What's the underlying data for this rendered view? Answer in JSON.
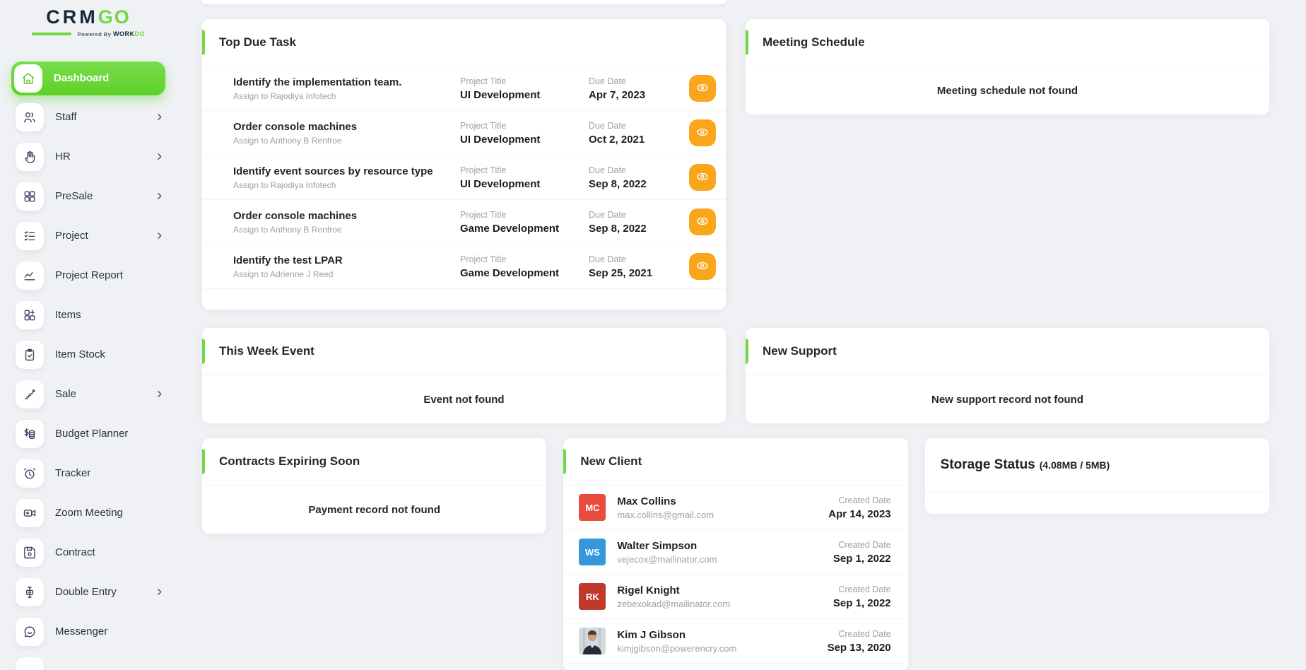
{
  "brand": {
    "name_primary": "CRM",
    "name_accent": "GO",
    "powered_by": "Powered By",
    "powered_brand_primary": "WORK",
    "powered_brand_accent": "DO"
  },
  "colors": {
    "accent_green": "#6fd943",
    "warning_orange": "#f9a61c",
    "avatar_red": "#e74c3c",
    "avatar_blue": "#3498db",
    "avatar_dark_red": "#c0392b"
  },
  "sidebar": {
    "items": [
      {
        "label": "Dashboard",
        "icon": "home-icon",
        "active": true,
        "has_submenu": false
      },
      {
        "label": "Staff",
        "icon": "users-icon",
        "active": false,
        "has_submenu": true
      },
      {
        "label": "HR",
        "icon": "hand-icon",
        "active": false,
        "has_submenu": true
      },
      {
        "label": "PreSale",
        "icon": "grid-icon",
        "active": false,
        "has_submenu": true
      },
      {
        "label": "Project",
        "icon": "list-checks-icon",
        "active": false,
        "has_submenu": true
      },
      {
        "label": "Project Report",
        "icon": "chart-line-icon",
        "active": false,
        "has_submenu": false
      },
      {
        "label": "Items",
        "icon": "grid-plus-icon",
        "active": false,
        "has_submenu": false
      },
      {
        "label": "Item Stock",
        "icon": "clipboard-check-icon",
        "active": false,
        "has_submenu": false
      },
      {
        "label": "Sale",
        "icon": "stairs-icon",
        "active": false,
        "has_submenu": true
      },
      {
        "label": "Budget Planner",
        "icon": "dollar-coins-icon",
        "active": false,
        "has_submenu": false
      },
      {
        "label": "Tracker",
        "icon": "alarm-clock-icon",
        "active": false,
        "has_submenu": false
      },
      {
        "label": "Zoom Meeting",
        "icon": "video-camera-icon",
        "active": false,
        "has_submenu": false
      },
      {
        "label": "Contract",
        "icon": "save-icon",
        "active": false,
        "has_submenu": false
      },
      {
        "label": "Double Entry",
        "icon": "ledger-icon",
        "active": false,
        "has_submenu": true
      },
      {
        "label": "Messenger",
        "icon": "chat-icon",
        "active": false,
        "has_submenu": false
      }
    ]
  },
  "cards": {
    "top_due_task": {
      "title": "Top Due Task",
      "project_title_label": "Project Title",
      "due_date_label": "Due Date",
      "tasks": [
        {
          "title": "Identify the implementation team.",
          "assign": "Assign to Rajodiya Infotech",
          "project": "UI Development",
          "due_date": "Apr 7, 2023"
        },
        {
          "title": "Order console machines",
          "assign": "Assign to Anthony B Renfroe",
          "project": "UI Development",
          "due_date": "Oct 2, 2021"
        },
        {
          "title": "Identify event sources by resource type",
          "assign": "Assign to Rajodiya Infotech",
          "project": "UI Development",
          "due_date": "Sep 8, 2022"
        },
        {
          "title": "Order console machines",
          "assign": "Assign to Anthony B Renfroe",
          "project": "Game Development",
          "due_date": "Sep 8, 2022"
        },
        {
          "title": "Identify the test LPAR",
          "assign": "Assign to Adrienne J Reed",
          "project": "Game Development",
          "due_date": "Sep 25, 2021"
        }
      ]
    },
    "meeting_schedule": {
      "title": "Meeting Schedule",
      "empty_message": "Meeting schedule not found"
    },
    "this_week_event": {
      "title": "This Week Event",
      "empty_message": "Event not found"
    },
    "new_support": {
      "title": "New Support",
      "empty_message": "New support record not found"
    },
    "contracts_expiring_soon": {
      "title": "Contracts Expiring Soon",
      "empty_message": "Payment record not found"
    },
    "new_client": {
      "title": "New Client",
      "created_date_label": "Created Date",
      "clients": [
        {
          "name": "Max Collins",
          "email": "max.collins@gmail.com",
          "created_date": "Apr 14, 2023",
          "avatar_type": "initials",
          "avatar_initials": "MC",
          "avatar_color": "#e74c3c"
        },
        {
          "name": "Walter Simpson",
          "email": "vejecox@mailinator.com",
          "created_date": "Sep 1, 2022",
          "avatar_type": "initials",
          "avatar_initials": "WS",
          "avatar_color": "#3498db"
        },
        {
          "name": "Rigel Knight",
          "email": "zebexokad@mailinator.com",
          "created_date": "Sep 1, 2022",
          "avatar_type": "initials",
          "avatar_initials": "RK",
          "avatar_color": "#c0392b"
        },
        {
          "name": "Kim J Gibson",
          "email": "kimjgibson@powerencry.com",
          "created_date": "Sep 13, 2020",
          "avatar_type": "photo"
        }
      ]
    },
    "storage_status": {
      "title": "Storage Status",
      "usage": "(4.08MB / 5MB)"
    }
  }
}
